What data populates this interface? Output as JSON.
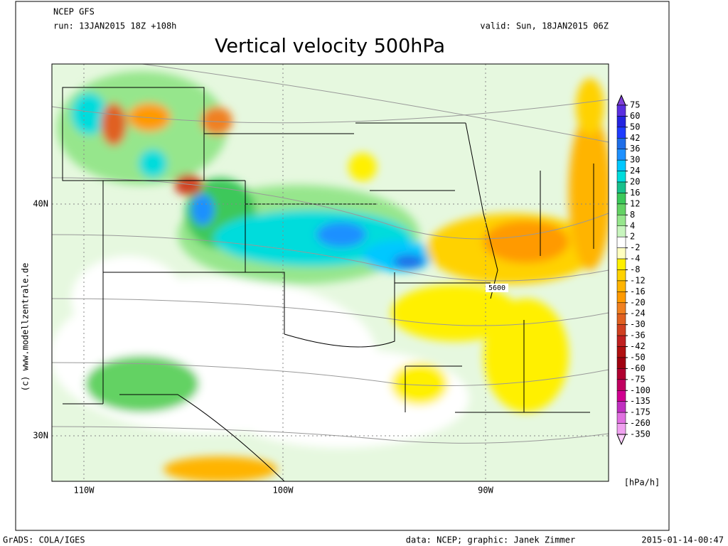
{
  "header": {
    "model": "NCEP GFS",
    "run": "run: 13JAN2015 18Z +108h",
    "valid": "valid: Sun, 18JAN2015 06Z",
    "title": "Vertical velocity 500hPa"
  },
  "map": {
    "lat_labels": [
      "40N",
      "30N"
    ],
    "lon_labels": [
      "110W",
      "100W",
      "90W"
    ],
    "contour_label": "5600",
    "side_credit": "(c) www.modellzentrale.de"
  },
  "legend": {
    "unit": "[hPa/h]",
    "levels": [
      75,
      60,
      50,
      42,
      36,
      30,
      24,
      20,
      16,
      12,
      8,
      4,
      2,
      -2,
      -4,
      -8,
      -12,
      -16,
      -20,
      -24,
      -30,
      -36,
      -42,
      -50,
      -60,
      -75,
      -100,
      -135,
      -175,
      -260,
      -350
    ],
    "colors": [
      "#7f3fd9",
      "#5a2fe0",
      "#2424e0",
      "#1e3cff",
      "#1f6ee8",
      "#1e90ff",
      "#00c8ff",
      "#00dcdc",
      "#18c08c",
      "#3cc85a",
      "#64d264",
      "#96e68c",
      "#c8f5be",
      "#ffffff",
      "#ffffc0",
      "#fff000",
      "#ffd200",
      "#ffb400",
      "#ff9a00",
      "#f08020",
      "#e06020",
      "#d04020",
      "#c02020",
      "#b01010",
      "#a00010",
      "#b00030",
      "#c00060",
      "#d00090",
      "#c030c0",
      "#e070e0",
      "#f0a0f0",
      "#ffd0ff"
    ]
  },
  "footer": {
    "left": "GrADS: COLA/IGES",
    "center": "data: NCEP; graphic: Janek Zimmer",
    "right": "2015-01-14-00:47"
  }
}
